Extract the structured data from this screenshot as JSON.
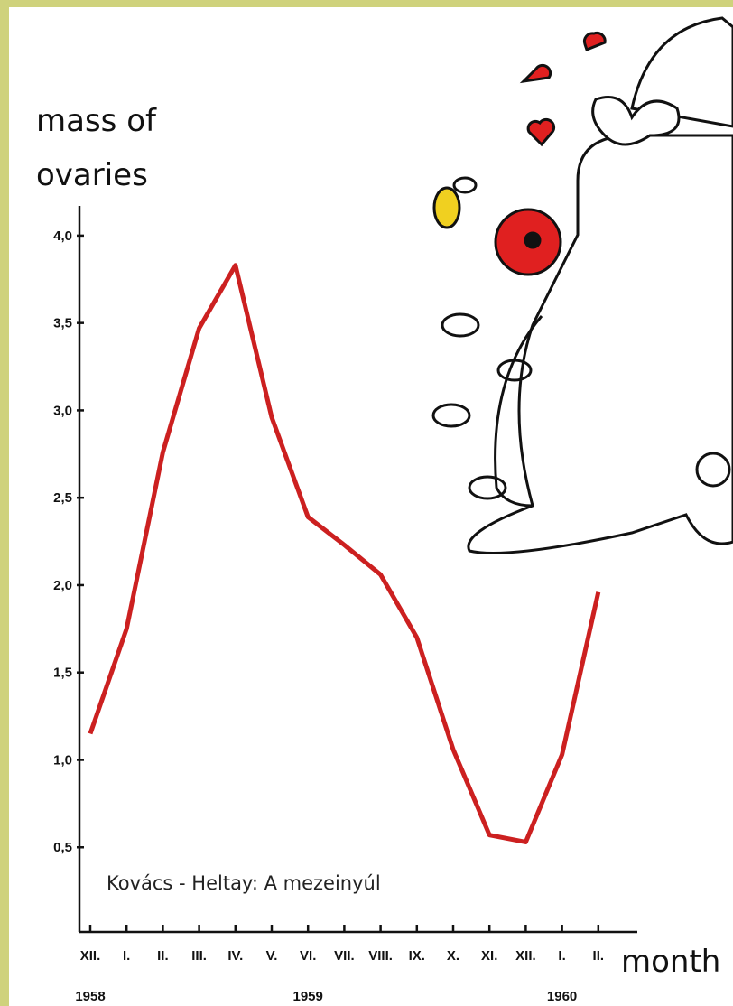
{
  "chart_data": {
    "type": "line",
    "y_label": "mass of ovaries",
    "x_label": "month",
    "annotation": "Kovács - Heltay: A mezeinyúl",
    "categories": [
      "XII.",
      "I.",
      "II.",
      "III.",
      "IV.",
      "V.",
      "VI.",
      "VII.",
      "VIII.",
      "IX.",
      "X.",
      "XI.",
      "XII.",
      "I.",
      "II."
    ],
    "year_labels": [
      "1958",
      "1959",
      "1960"
    ],
    "series": [
      {
        "color": "#cc2020",
        "values": [
          1.15,
          1.75,
          2.76,
          3.47,
          3.83,
          2.96,
          2.39,
          2.23,
          2.06,
          1.7,
          1.06,
          0.57,
          0.53,
          1.03,
          1.96
        ]
      }
    ],
    "ylim": [
      0,
      4.17
    ],
    "yticks": [
      {
        "value": 0.5,
        "label": "0,5"
      },
      {
        "value": 1,
        "label": "1,0"
      },
      {
        "value": 1.5,
        "label": "1,5"
      },
      {
        "value": 2,
        "label": "2,0"
      },
      {
        "value": 2.5,
        "label": "2,5"
      },
      {
        "value": 3,
        "label": "3,0"
      },
      {
        "value": 3.5,
        "label": "3,5"
      },
      {
        "value": 4,
        "label": "4,0"
      }
    ]
  }
}
